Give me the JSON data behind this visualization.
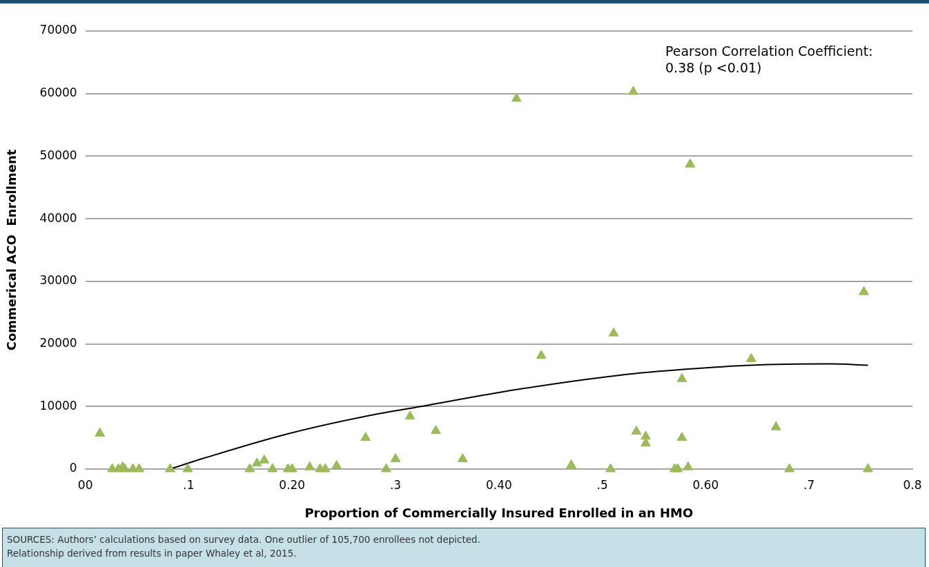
{
  "chart_data": {
    "type": "scatter",
    "xlabel": "Proportion of Commercially Insured Enrolled in an HMO",
    "ylabel": "Commerical ACO  Enrollment",
    "xlim": [
      0,
      0.8
    ],
    "xticks": [
      {
        "value": 0,
        "label": "00"
      },
      {
        "value": 0.1,
        "label": ".1"
      },
      {
        "value": 0.2,
        "label": "0.20"
      },
      {
        "value": 0.3,
        "label": ".3"
      },
      {
        "value": 0.4,
        "label": "0.40"
      },
      {
        "value": 0.5,
        "label": ".5"
      },
      {
        "value": 0.6,
        "label": "0.60"
      },
      {
        "value": 0.7,
        "label": ".7"
      },
      {
        "value": 0.8,
        "label": "0.8"
      }
    ],
    "ylim": [
      0,
      70000
    ],
    "yticks": [
      0,
      10000,
      20000,
      30000,
      40000,
      50000,
      60000,
      70000
    ],
    "grid": "y",
    "legend": false,
    "marker": "triangle",
    "series": [
      {
        "color": "#9bbb59",
        "x": [
          0.014,
          0.026,
          0.032,
          0.036,
          0.038,
          0.046,
          0.052,
          0.082,
          0.099,
          0.159,
          0.166,
          0.173,
          0.181,
          0.196,
          0.2,
          0.217,
          0.227,
          0.232,
          0.243,
          0.271,
          0.291,
          0.3,
          0.314,
          0.339,
          0.365,
          0.417,
          0.441,
          0.47,
          0.508,
          0.511,
          0.53,
          0.533,
          0.542,
          0.542,
          0.57,
          0.573,
          0.583,
          0.577,
          0.577,
          0.585,
          0.644,
          0.668,
          0.681,
          0.753,
          0.757
        ],
        "values": [
          5700,
          0,
          0,
          300,
          0,
          0,
          0,
          0,
          0,
          0,
          900,
          1400,
          0,
          0,
          0,
          300,
          0,
          0,
          500,
          5000,
          0,
          1600,
          8400,
          6100,
          1600,
          59200,
          18100,
          600,
          0,
          21700,
          60300,
          6000,
          5200,
          4100,
          0,
          0,
          300,
          14400,
          5000,
          48700,
          17600,
          6700,
          0,
          28300,
          0
        ]
      },
      {
        "type": "line",
        "color": "#000000",
        "marker": "none",
        "line_style": "solid",
        "x": [
          0.082,
          0.114,
          0.195,
          0.282,
          0.314,
          0.417,
          0.517,
          0.585,
          0.644,
          0.72,
          0.757
        ],
        "values": [
          0,
          1700,
          5600,
          8800,
          9700,
          12700,
          15000,
          16000,
          16600,
          16800,
          16600
        ]
      }
    ],
    "annotations": [
      "Pearson Correlation Coefficient:\n0.38 (p <0.01)",
      "SOURCES: Authors’ calculations based on survey data. One outlier of 105,700 enrollees not depicted.\nRelationship derived from results in paper Whaley et al, 2015."
    ]
  }
}
